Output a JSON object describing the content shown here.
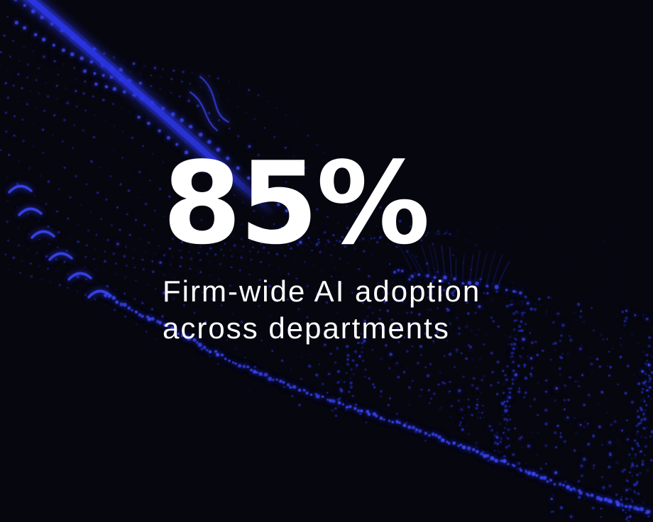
{
  "stat": {
    "value": "85%",
    "description_line1": "Firm-wide AI adoption",
    "description_line2": "across departments"
  },
  "background": {
    "base_color": "#06060f",
    "dot_dim": "#161c6e",
    "dot_mid": "#2430c0",
    "dot_bright": "#3a46f0",
    "streak_color": "#2b36e8",
    "text_color": "#ffffff"
  }
}
